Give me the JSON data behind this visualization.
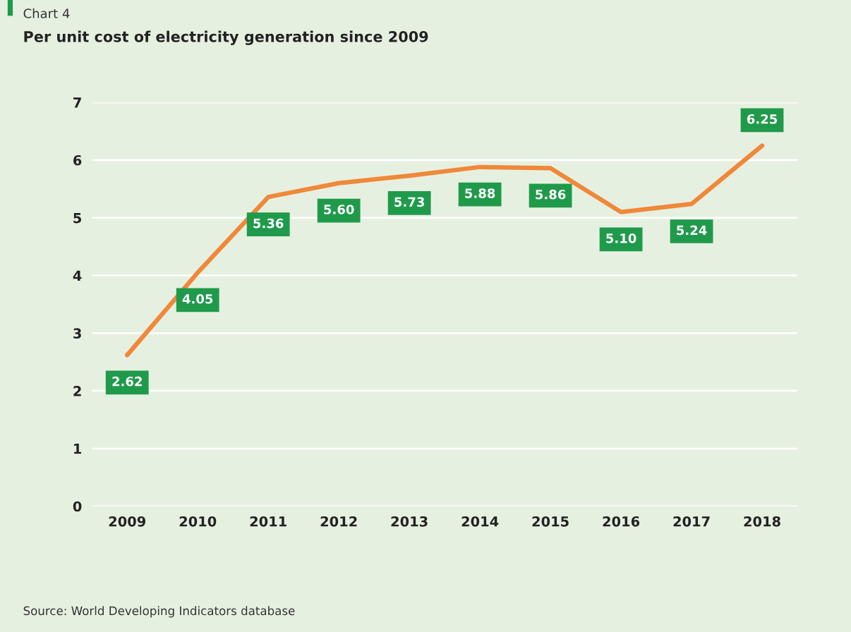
{
  "chart_data": {
    "type": "line",
    "title": "Chart 4",
    "subtitle": "Per unit cost of electricity generation since 2009",
    "categories": [
      "2009",
      "2010",
      "2011",
      "2012",
      "2013",
      "2014",
      "2015",
      "2016",
      "2017",
      "2018"
    ],
    "series": [
      {
        "color": "#f0883a",
        "values": [
          2.62,
          4.05,
          5.36,
          5.6,
          5.73,
          5.88,
          5.86,
          5.1,
          5.24,
          6.25
        ],
        "value_labels": [
          "2.62",
          "4.05",
          "5.36",
          "5.60",
          "5.73",
          "5.88",
          "5.86",
          "5.10",
          "5.24",
          "6.25"
        ]
      }
    ],
    "ylim": [
      0,
      7
    ],
    "yticks": [
      0,
      1,
      2,
      3,
      4,
      5,
      6,
      7
    ],
    "grid": "y",
    "marker": "none",
    "line_style": "solid",
    "annotations": [
      "Source: World Developing Indicators database"
    ]
  }
}
